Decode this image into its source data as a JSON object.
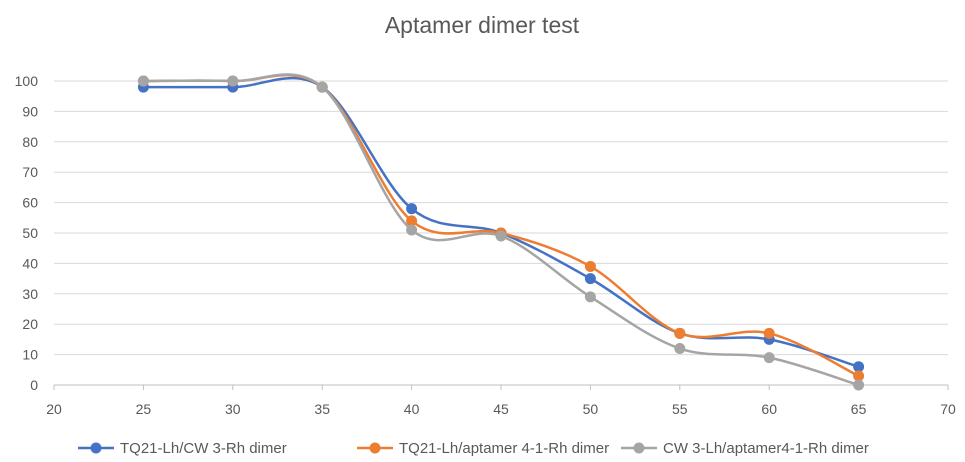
{
  "chart_data": {
    "type": "line",
    "title": "Aptamer dimer test",
    "xlabel": "",
    "ylabel": "",
    "xlim": [
      20,
      70
    ],
    "ylim": [
      0,
      100
    ],
    "x_ticks": [
      20,
      25,
      30,
      35,
      40,
      45,
      50,
      55,
      60,
      65,
      70
    ],
    "y_ticks": [
      0,
      10,
      20,
      30,
      40,
      50,
      60,
      70,
      80,
      90,
      100
    ],
    "grid": "horizontal",
    "smooth": true,
    "legend_position": "bottom",
    "series": [
      {
        "name": "TQ21-Lh/CW 3-Rh dimer",
        "color": "#4472C4",
        "x": [
          25,
          30,
          35,
          40,
          45,
          50,
          55,
          60,
          65
        ],
        "y": [
          98,
          98,
          98,
          58,
          50,
          35,
          17,
          15,
          6
        ]
      },
      {
        "name": "TQ21-Lh/aptamer 4-1-Rh dimer",
        "color": "#ED7D31",
        "x": [
          25,
          30,
          35,
          40,
          45,
          50,
          55,
          60,
          65
        ],
        "y": [
          100,
          100,
          98,
          54,
          50,
          39,
          17,
          17,
          3
        ]
      },
      {
        "name": "CW 3-Lh/aptamer4-1-Rh dimer",
        "color": "#A5A5A5",
        "x": [
          25,
          30,
          35,
          40,
          45,
          50,
          55,
          60,
          65
        ],
        "y": [
          100,
          100,
          98,
          51,
          49,
          29,
          12,
          9,
          0
        ]
      }
    ]
  }
}
